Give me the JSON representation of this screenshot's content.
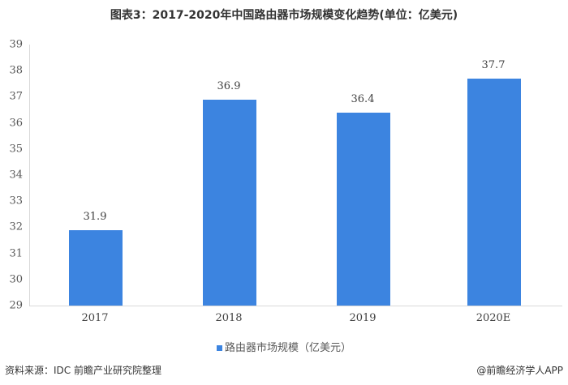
{
  "title": "图表3：2017-2020年中国路由器市场规模变化趋势(单位：亿美元)",
  "legend": {
    "label": "路由器市场规模（亿美元）",
    "color": "#3c84e0"
  },
  "footer": {
    "source": "资料来源：IDC 前瞻产业研究院整理",
    "credit": "@前瞻经济学人APP"
  },
  "yticks": [
    "39",
    "38",
    "37",
    "36",
    "35",
    "34",
    "33",
    "32",
    "31",
    "30",
    "29"
  ],
  "bars": [
    {
      "category": "2017",
      "label": "31.9"
    },
    {
      "category": "2018",
      "label": "36.9"
    },
    {
      "category": "2019",
      "label": "36.4"
    },
    {
      "category": "2020E",
      "label": "37.7"
    }
  ],
  "chart_data": {
    "type": "bar",
    "title": "图表3：2017-2020年中国路由器市场规模变化趋势(单位：亿美元)",
    "categories": [
      "2017",
      "2018",
      "2019",
      "2020E"
    ],
    "series": [
      {
        "name": "路由器市场规模（亿美元）",
        "values": [
          31.9,
          36.9,
          36.4,
          37.7
        ]
      }
    ],
    "xlabel": "",
    "ylabel": "",
    "ylim": [
      29,
      39
    ],
    "yticks": [
      29,
      30,
      31,
      32,
      33,
      34,
      35,
      36,
      37,
      38,
      39
    ],
    "grid": false,
    "legend_position": "bottom",
    "data_labels": true,
    "bar_color": "#3c84e0"
  }
}
